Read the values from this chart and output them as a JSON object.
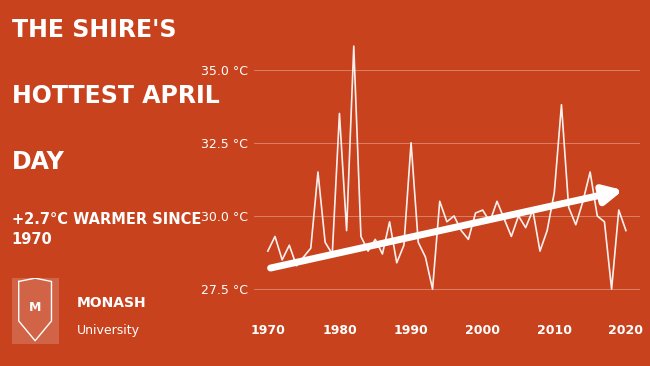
{
  "title_line1": "THE SHIRE'S",
  "title_line2": "HOTTEST APRIL",
  "title_line3": "DAY",
  "subtitle": "+2.7°C WARMER SINCE\n1970",
  "bg_color": "#c8421e",
  "line_color": "#ffffff",
  "arrow_color": "#ffffff",
  "text_color": "#ffffff",
  "years": [
    1970,
    1971,
    1972,
    1973,
    1974,
    1975,
    1976,
    1977,
    1978,
    1979,
    1980,
    1981,
    1982,
    1983,
    1984,
    1985,
    1986,
    1987,
    1988,
    1989,
    1990,
    1991,
    1992,
    1993,
    1994,
    1995,
    1996,
    1997,
    1998,
    1999,
    2000,
    2001,
    2002,
    2003,
    2004,
    2005,
    2006,
    2007,
    2008,
    2009,
    2010,
    2011,
    2012,
    2013,
    2014,
    2015,
    2016,
    2017,
    2018,
    2019,
    2020
  ],
  "temps": [
    28.8,
    29.3,
    28.5,
    29.0,
    28.3,
    28.6,
    28.9,
    31.5,
    29.1,
    28.7,
    33.5,
    29.5,
    35.8,
    29.3,
    28.8,
    29.2,
    28.7,
    29.8,
    28.4,
    29.0,
    32.5,
    29.1,
    28.6,
    27.5,
    30.5,
    29.8,
    30.0,
    29.5,
    29.2,
    30.1,
    30.2,
    29.8,
    30.5,
    29.9,
    29.3,
    30.0,
    29.6,
    30.2,
    28.8,
    29.5,
    30.8,
    33.8,
    30.3,
    29.7,
    30.5,
    31.5,
    30.0,
    29.8,
    27.5,
    30.2,
    29.5
  ],
  "trend_start_x": 1970,
  "trend_start_y": 28.2,
  "trend_end_x": 2020,
  "trend_end_y": 30.9,
  "ylim_min": 26.5,
  "ylim_max": 36.5,
  "yticks": [
    27.5,
    30.0,
    32.5,
    35.0
  ],
  "xlim_min": 1968,
  "xlim_max": 2022,
  "xticks": [
    1970,
    1980,
    1990,
    2000,
    2010,
    2020
  ],
  "monash_text_bold": "MONASH",
  "monash_text_light": "University",
  "title_fontsize": 17,
  "subtitle_fontsize": 10.5,
  "tick_fontsize": 9,
  "xtick_fontsize": 9
}
